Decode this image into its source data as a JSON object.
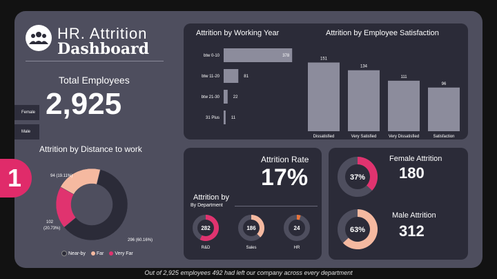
{
  "header": {
    "title_line1": "HR. Attrition",
    "title_line2": "Dashboard",
    "logo_icon": "people-group-icon"
  },
  "kpi": {
    "total_label": "Total Employees",
    "total_value": "2,925"
  },
  "slicer": {
    "items": [
      "Female",
      "Male"
    ]
  },
  "badge": {
    "number": "1"
  },
  "rate": {
    "label": "Attrition Rate",
    "value": "17%"
  },
  "gender": {
    "female_label": "Female Attrition",
    "female_value": "180",
    "female_pct_label": "37%",
    "male_label": "Male Attrition",
    "male_value": "312",
    "male_pct_label": "63%"
  },
  "dept": {
    "title": "Attrition by",
    "subtitle": "By Department"
  },
  "footer": {
    "text": "Out of 2,925 employees 492 had left our company across every department"
  },
  "colors": {
    "pink": "#e0336f",
    "peach": "#f5b9a0",
    "orange": "#e8743b",
    "dark": "#2b2b38",
    "ring_bg": "#4e4e5e",
    "bar": "#8c8c9c"
  },
  "chart_data": [
    {
      "type": "bar",
      "orientation": "horizontal",
      "title": "Attrition by Working Year",
      "categories": [
        "btw 0-10",
        "btw 11-20",
        "btw 21-30",
        "31 Plus"
      ],
      "values": [
        378,
        81,
        22,
        11
      ]
    },
    {
      "type": "bar",
      "title": "Attrition by Employee Satisfaction",
      "categories": [
        "Dissatisfied",
        "Very Satisfied",
        "Very Dissatisfied",
        "Satisfaction"
      ],
      "values": [
        151,
        134,
        111,
        96
      ]
    },
    {
      "type": "pie",
      "donut": true,
      "title": "Attrition by Distance to work",
      "categories": [
        "Near-by",
        "Far",
        "Very Far"
      ],
      "values": [
        296,
        102,
        94
      ],
      "labels": [
        "296 (60.16%)",
        "102 (20.73%)",
        "94 (19.11%)"
      ],
      "colors": [
        "#2b2b38",
        "#f5b9a0",
        "#e0336f"
      ],
      "legend": "bottom"
    },
    {
      "type": "pie",
      "donut": true,
      "title": "Attrition by Department",
      "categories": [
        "R&D",
        "Sales",
        "HR"
      ],
      "values": [
        282,
        186,
        24
      ],
      "colors": [
        "#e0336f",
        "#f5b9a0",
        "#e8743b"
      ]
    }
  ]
}
